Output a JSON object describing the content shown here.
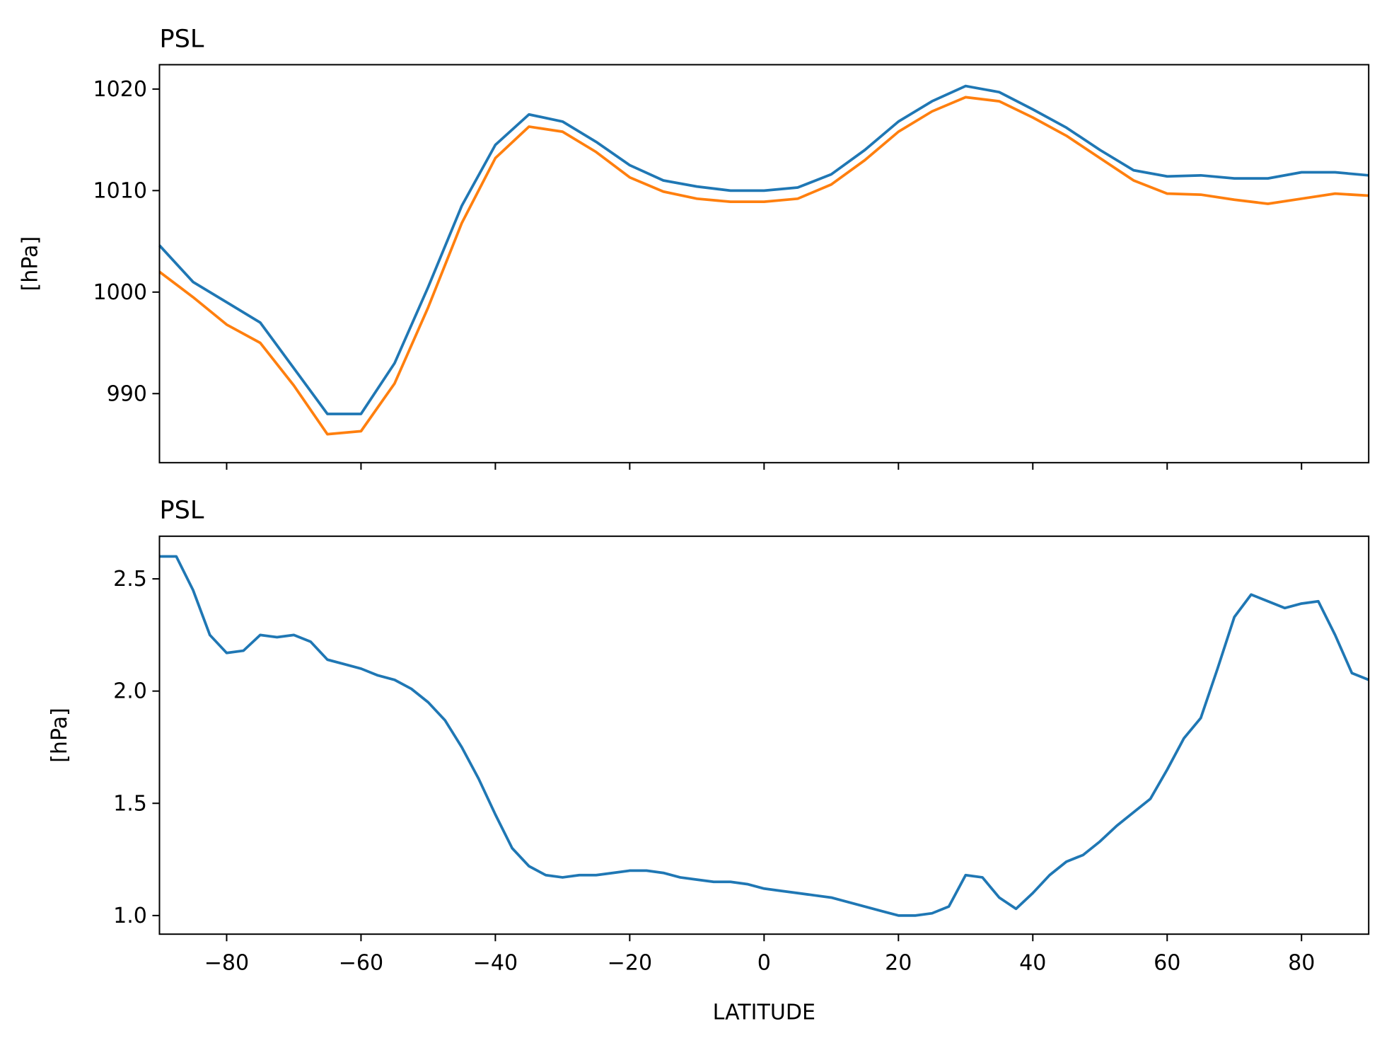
{
  "chart_data": [
    {
      "type": "line",
      "title": "PSL",
      "ylabel": "[hPa]",
      "x": [
        -90,
        -85,
        -80,
        -75,
        -70,
        -65,
        -60,
        -55,
        -50,
        -45,
        -40,
        -35,
        -30,
        -25,
        -20,
        -15,
        -10,
        -5,
        0,
        5,
        10,
        15,
        20,
        25,
        30,
        35,
        40,
        45,
        50,
        55,
        60,
        65,
        70,
        75,
        80,
        85,
        90
      ],
      "series": [
        {
          "color": "#1f77b4",
          "values": [
            1004.6,
            1001.0,
            999.0,
            997.0,
            992.5,
            988.0,
            988.0,
            993.0,
            1000.5,
            1008.5,
            1014.5,
            1017.5,
            1016.8,
            1014.8,
            1012.5,
            1011.0,
            1010.4,
            1010.0,
            1010.0,
            1010.3,
            1011.6,
            1014.0,
            1016.8,
            1018.8,
            1020.3,
            1019.7,
            1018.0,
            1016.2,
            1014.0,
            1012.0,
            1011.4,
            1011.5,
            1011.2,
            1011.2,
            1011.8,
            1011.8,
            1011.5
          ]
        },
        {
          "color": "#ff7f0e",
          "values": [
            1002.0,
            999.5,
            996.8,
            995.0,
            990.8,
            986.0,
            986.3,
            991.0,
            998.5,
            1006.8,
            1013.2,
            1016.3,
            1015.8,
            1013.8,
            1011.3,
            1009.9,
            1009.2,
            1008.9,
            1008.9,
            1009.2,
            1010.6,
            1013.0,
            1015.8,
            1017.8,
            1019.2,
            1018.8,
            1017.2,
            1015.4,
            1013.2,
            1011.0,
            1009.7,
            1009.6,
            1009.1,
            1008.7,
            1009.2,
            1009.7,
            1009.5
          ]
        }
      ],
      "xlim": [
        -90,
        90
      ],
      "xticks": [
        -80,
        -60,
        -40,
        -20,
        0,
        20,
        40,
        60,
        80
      ],
      "ylim": [
        983.2,
        1022.4
      ],
      "yticks": [
        990,
        1000,
        1010,
        1020
      ]
    },
    {
      "type": "line",
      "title": "PSL",
      "ylabel": "[hPa]",
      "xlabel": "LATITUDE",
      "x": [
        -90,
        -87.5,
        -85,
        -82.5,
        -80,
        -77.5,
        -75,
        -72.5,
        -70,
        -67.5,
        -65,
        -62.5,
        -60,
        -57.5,
        -55,
        -52.5,
        -50,
        -47.5,
        -45,
        -42.5,
        -40,
        -37.5,
        -35,
        -32.5,
        -30,
        -27.5,
        -25,
        -22.5,
        -20,
        -17.5,
        -15,
        -12.5,
        -10,
        -7.5,
        -5,
        -2.5,
        0,
        2.5,
        5,
        7.5,
        10,
        12.5,
        15,
        17.5,
        20,
        22.5,
        25,
        27.5,
        30,
        32.5,
        35,
        37.5,
        40,
        42.5,
        45,
        47.5,
        50,
        52.5,
        55,
        57.5,
        60,
        62.5,
        65,
        67.5,
        70,
        72.5,
        75,
        77.5,
        80,
        82.5,
        85,
        87.5,
        90
      ],
      "series": [
        {
          "color": "#1f77b4",
          "values": [
            2.6,
            2.6,
            2.45,
            2.25,
            2.17,
            2.18,
            2.25,
            2.24,
            2.25,
            2.22,
            2.14,
            2.12,
            2.1,
            2.07,
            2.05,
            2.01,
            1.95,
            1.87,
            1.75,
            1.61,
            1.45,
            1.3,
            1.22,
            1.18,
            1.17,
            1.18,
            1.18,
            1.19,
            1.2,
            1.2,
            1.19,
            1.17,
            1.16,
            1.15,
            1.15,
            1.14,
            1.12,
            1.11,
            1.1,
            1.09,
            1.08,
            1.06,
            1.04,
            1.02,
            1.0,
            1.0,
            1.01,
            1.04,
            1.18,
            1.17,
            1.08,
            1.03,
            1.1,
            1.18,
            1.24,
            1.27,
            1.33,
            1.4,
            1.46,
            1.52,
            1.65,
            1.79,
            1.88,
            2.1,
            2.33,
            2.43,
            2.4,
            2.37,
            2.39,
            2.4,
            2.25,
            2.08,
            2.05
          ]
        }
      ],
      "xlim": [
        -90,
        90
      ],
      "xticks": [
        {
          "value": -80,
          "label": "−80"
        },
        {
          "value": -60,
          "label": "−60"
        },
        {
          "value": -40,
          "label": "−40"
        },
        {
          "value": -20,
          "label": "−20"
        },
        0,
        20,
        40,
        60,
        80
      ],
      "ylim": [
        0.917,
        2.69
      ],
      "yticks": [
        {
          "value": 1,
          "label": "1.0"
        },
        1.5,
        {
          "value": 2,
          "label": "2.0"
        },
        2.5
      ]
    }
  ]
}
